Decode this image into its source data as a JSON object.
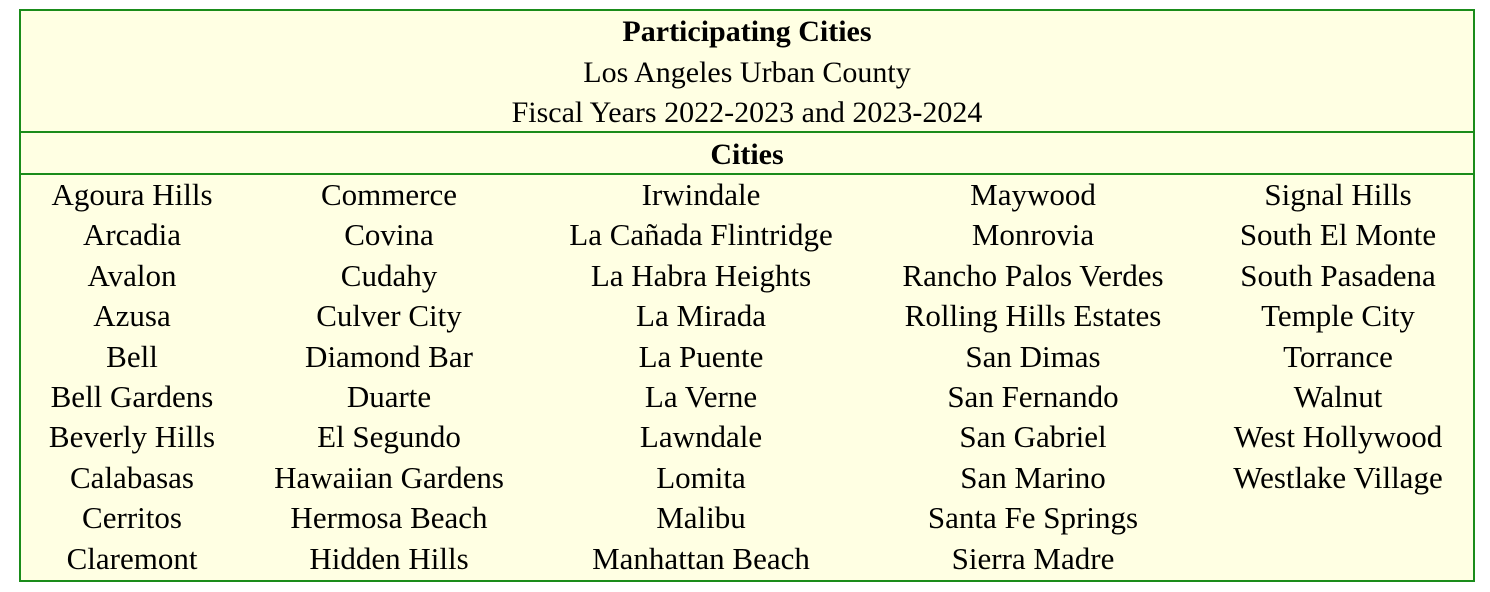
{
  "title": "Participating Cities",
  "subtitle1": "Los Angeles Urban County",
  "subtitle2": "Fiscal Years 2022-2023 and 2023-2024",
  "section_header": "Cities",
  "colors": {
    "border": "#1a8c1a",
    "background": "#ffffe3"
  },
  "columns": [
    [
      "Agoura Hills",
      "Arcadia",
      "Avalon",
      "Azusa",
      "Bell",
      "Bell Gardens",
      "Beverly Hills",
      "Calabasas",
      "Cerritos",
      "Claremont"
    ],
    [
      "Commerce",
      "Covina",
      "Cudahy",
      "Culver City",
      "Diamond Bar",
      "Duarte",
      "El Segundo",
      "Hawaiian Gardens",
      "Hermosa Beach",
      "Hidden Hills"
    ],
    [
      "Irwindale",
      "La Cañada Flintridge",
      "La Habra Heights",
      "La Mirada",
      "La Puente",
      "La Verne",
      "Lawndale",
      "Lomita",
      "Malibu",
      "Manhattan Beach"
    ],
    [
      "Maywood",
      "Monrovia",
      "Rancho Palos Verdes",
      "Rolling Hills Estates",
      "San Dimas",
      "San Fernando",
      "San Gabriel",
      "San Marino",
      "Santa Fe Springs",
      "Sierra Madre"
    ],
    [
      "Signal Hills",
      "South El Monte",
      "South Pasadena",
      "Temple City",
      "Torrance",
      "Walnut",
      "West Hollywood",
      "Westlake Village"
    ]
  ]
}
